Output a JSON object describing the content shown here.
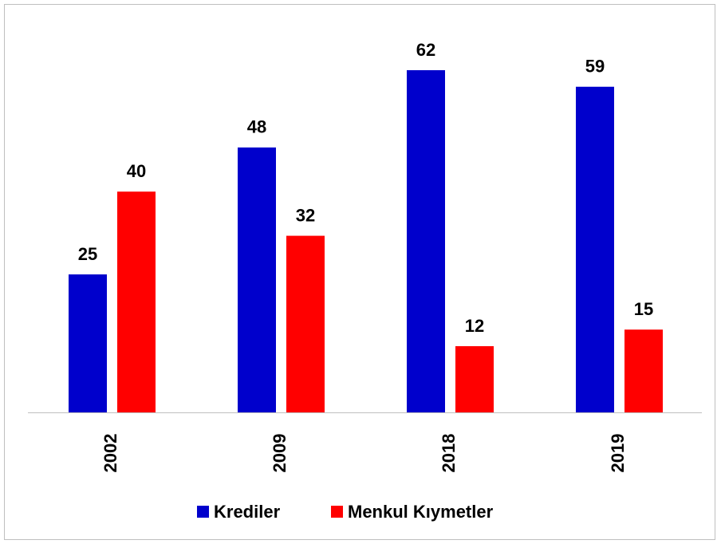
{
  "chart_data": {
    "type": "bar",
    "categories": [
      "2002",
      "2009",
      "2018",
      "2019"
    ],
    "series": [
      {
        "name": "Krediler",
        "color": "#0000cc",
        "values": [
          25,
          48,
          62,
          59
        ]
      },
      {
        "name": "Menkul Kıymetler",
        "color": "#ff0000",
        "values": [
          40,
          32,
          12,
          15
        ]
      }
    ],
    "legend": "bottom"
  }
}
